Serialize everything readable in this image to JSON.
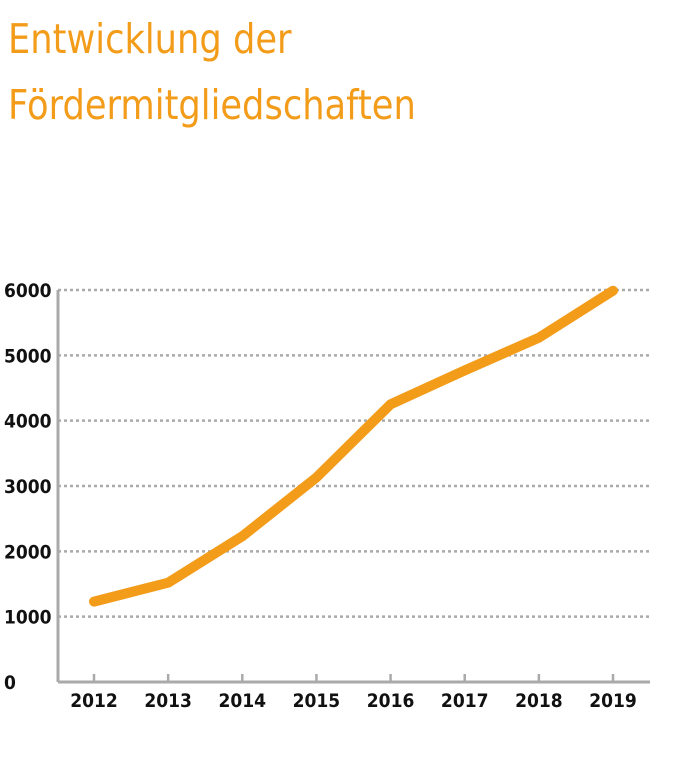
{
  "title": {
    "line1": "Entwicklung der",
    "line2": "Fördermitgliedschaften"
  },
  "colors": {
    "accent": "#f39c1a",
    "axis": "#aaaaaa",
    "grid": "#aaaaaa",
    "text": "#111111"
  },
  "chart_data": {
    "type": "line",
    "title": "Entwicklung der Fördermitgliedschaften",
    "xlabel": "",
    "ylabel": "",
    "categories": [
      "2012",
      "2013",
      "2014",
      "2015",
      "2016",
      "2017",
      "2018",
      "2019"
    ],
    "series": [
      {
        "values": [
          1230,
          1520,
          2230,
          3130,
          4250,
          4770,
          5270,
          5990
        ]
      }
    ],
    "ylim": [
      0,
      6000
    ],
    "yticks": [
      0,
      1000,
      2000,
      3000,
      4000,
      5000,
      6000
    ],
    "grid": "horizontal dotted",
    "legend": "none"
  }
}
